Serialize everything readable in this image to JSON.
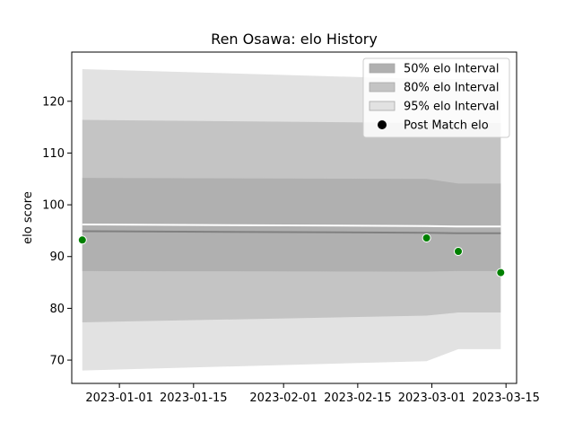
{
  "chart_data": {
    "type": "area",
    "title": "Ren Osawa: elo History",
    "xlabel": "",
    "ylabel": "elo score",
    "x": [
      "2022-12-25",
      "2023-02-28",
      "2023-03-06",
      "2023-03-14"
    ],
    "xlim": [
      "2022-12-23",
      "2023-03-17"
    ],
    "ylim": [
      65.5,
      129.5
    ],
    "xticks": [
      "2023-01-01",
      "2023-01-15",
      "2023-02-01",
      "2023-02-15",
      "2023-03-01",
      "2023-03-15"
    ],
    "yticks": [
      70,
      80,
      90,
      100,
      110,
      120
    ],
    "grid": false,
    "legend_position": "top-right",
    "mean_line": [
      94.9,
      94.6,
      94.5,
      94.5
    ],
    "series": [
      {
        "name": "50% elo Interval",
        "color": "#b0b0b0",
        "lower": [
          87.2,
          87.1,
          87.2,
          87.2
        ],
        "upper": [
          105.2,
          105.0,
          104.1,
          104.1
        ]
      },
      {
        "name": "80% elo Interval",
        "color": "#c4c4c4",
        "lower": [
          77.3,
          78.6,
          79.2,
          79.2
        ],
        "upper": [
          116.4,
          115.8,
          115.8,
          115.8
        ]
      },
      {
        "name": "95% elo Interval",
        "color": "#e2e2e2",
        "lower": [
          68.0,
          69.8,
          72.1,
          72.1
        ],
        "upper": [
          126.2,
          124.3,
          124.3,
          124.3
        ]
      }
    ],
    "points": {
      "name": "Post Match elo",
      "color": "#008000",
      "x": [
        "2022-12-25",
        "2023-02-28",
        "2023-03-06",
        "2023-03-14"
      ],
      "values": [
        93.2,
        93.6,
        91.0,
        86.9
      ]
    }
  }
}
